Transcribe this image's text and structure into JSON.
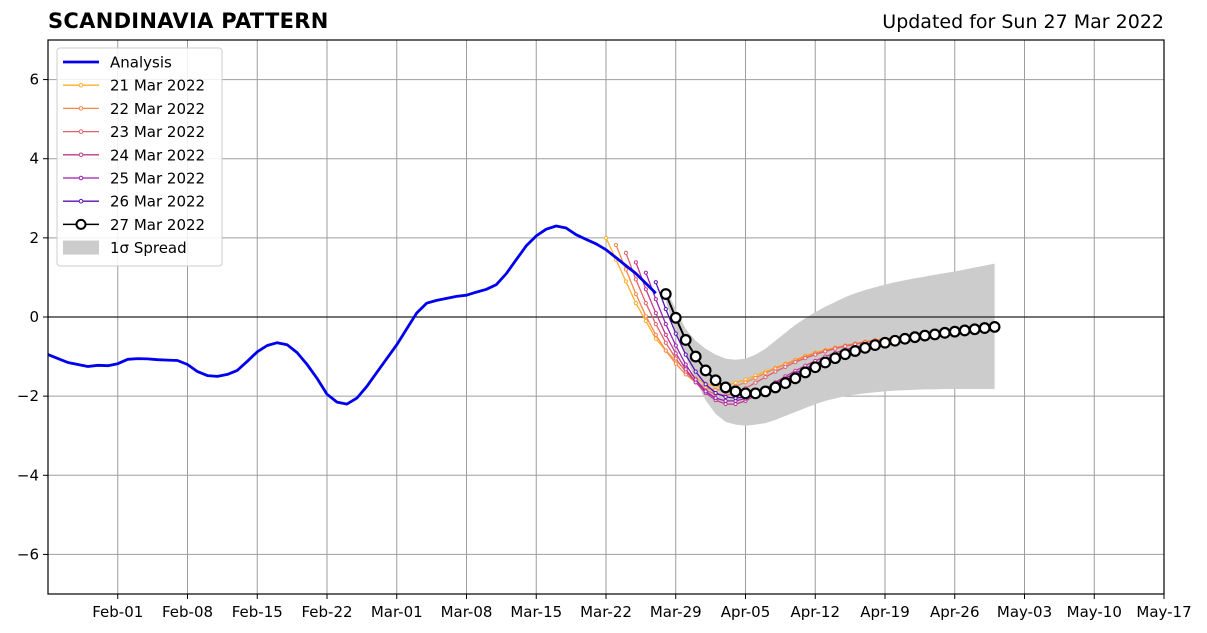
{
  "header": {
    "title": "SCANDINAVIA PATTERN",
    "updated": "Updated for Sun 27 Mar 2022"
  },
  "chart_data": {
    "type": "line",
    "title": "SCANDINAVIA PATTERN",
    "subtitle": "Updated for Sun 27 Mar 2022",
    "xlabel": "",
    "ylabel": "",
    "x_unit": "days since 2022-01-25",
    "xlim": [
      "2022-01-25",
      "2022-05-17"
    ],
    "ylim": [
      -7,
      7
    ],
    "x_ticks": [
      {
        "label": "Feb-01",
        "x": "2022-02-01"
      },
      {
        "label": "Feb-08",
        "x": "2022-02-08"
      },
      {
        "label": "Feb-15",
        "x": "2022-02-15"
      },
      {
        "label": "Feb-22",
        "x": "2022-02-22"
      },
      {
        "label": "Mar-01",
        "x": "2022-03-01"
      },
      {
        "label": "Mar-08",
        "x": "2022-03-08"
      },
      {
        "label": "Mar-15",
        "x": "2022-03-15"
      },
      {
        "label": "Mar-22",
        "x": "2022-03-22"
      },
      {
        "label": "Mar-29",
        "x": "2022-03-29"
      },
      {
        "label": "Apr-05",
        "x": "2022-04-05"
      },
      {
        "label": "Apr-12",
        "x": "2022-04-12"
      },
      {
        "label": "Apr-19",
        "x": "2022-04-19"
      },
      {
        "label": "Apr-26",
        "x": "2022-04-26"
      },
      {
        "label": "May-03",
        "x": "2022-05-03"
      },
      {
        "label": "May-10",
        "x": "2022-05-10"
      },
      {
        "label": "May-17",
        "x": "2022-05-17"
      }
    ],
    "y_ticks": [
      {
        "label": "6",
        "y": 6
      },
      {
        "label": "4",
        "y": 4
      },
      {
        "label": "2",
        "y": 2
      },
      {
        "label": "0",
        "y": 0
      },
      {
        "label": "−2",
        "y": -2
      },
      {
        "label": "−4",
        "y": -4
      },
      {
        "label": "−6",
        "y": -6
      }
    ],
    "grid": true,
    "zero_line": true,
    "legend_position": "top-left",
    "spread": {
      "name": "1σ Spread",
      "color": "#cccccc",
      "x": [
        "2022-03-28",
        "2022-03-29",
        "2022-03-30",
        "2022-03-31",
        "2022-04-01",
        "2022-04-02",
        "2022-04-03",
        "2022-04-04",
        "2022-04-05",
        "2022-04-06",
        "2022-04-07",
        "2022-04-08",
        "2022-04-09",
        "2022-04-10",
        "2022-04-11",
        "2022-04-12",
        "2022-04-13",
        "2022-04-14",
        "2022-04-15",
        "2022-04-16",
        "2022-04-17",
        "2022-04-18",
        "2022-04-19",
        "2022-04-20",
        "2022-04-21",
        "2022-04-22",
        "2022-04-23",
        "2022-04-24",
        "2022-04-25",
        "2022-04-26",
        "2022-04-27",
        "2022-04-28",
        "2022-04-29",
        "2022-04-30"
      ],
      "upper": [
        0.7,
        0.2,
        -0.3,
        -0.6,
        -0.8,
        -0.95,
        -1.05,
        -1.08,
        -1.05,
        -0.95,
        -0.8,
        -0.6,
        -0.4,
        -0.2,
        -0.03,
        0.12,
        0.26,
        0.38,
        0.5,
        0.6,
        0.68,
        0.75,
        0.82,
        0.88,
        0.93,
        0.98,
        1.02,
        1.07,
        1.11,
        1.15,
        1.2,
        1.25,
        1.3,
        1.35
      ],
      "lower": [
        0.4,
        -0.4,
        -1.0,
        -1.6,
        -2.1,
        -2.45,
        -2.65,
        -2.72,
        -2.75,
        -2.72,
        -2.68,
        -2.6,
        -2.5,
        -2.4,
        -2.3,
        -2.2,
        -2.12,
        -2.06,
        -2.0,
        -1.96,
        -1.93,
        -1.9,
        -1.88,
        -1.86,
        -1.85,
        -1.84,
        -1.83,
        -1.83,
        -1.82,
        -1.82,
        -1.82,
        -1.82,
        -1.82,
        -1.82
      ]
    },
    "analysis": {
      "name": "Analysis",
      "color": "#0000ee",
      "x": [
        "2022-01-25",
        "2022-01-26",
        "2022-01-27",
        "2022-01-28",
        "2022-01-29",
        "2022-01-30",
        "2022-01-31",
        "2022-02-01",
        "2022-02-02",
        "2022-02-03",
        "2022-02-04",
        "2022-02-05",
        "2022-02-06",
        "2022-02-07",
        "2022-02-08",
        "2022-02-09",
        "2022-02-10",
        "2022-02-11",
        "2022-02-12",
        "2022-02-13",
        "2022-02-14",
        "2022-02-15",
        "2022-02-16",
        "2022-02-17",
        "2022-02-18",
        "2022-02-19",
        "2022-02-20",
        "2022-02-21",
        "2022-02-22",
        "2022-02-23",
        "2022-02-24",
        "2022-02-25",
        "2022-02-26",
        "2022-02-27",
        "2022-02-28",
        "2022-03-01",
        "2022-03-02",
        "2022-03-03",
        "2022-03-04",
        "2022-03-05",
        "2022-03-06",
        "2022-03-07",
        "2022-03-08",
        "2022-03-09",
        "2022-03-10",
        "2022-03-11",
        "2022-03-12",
        "2022-03-13",
        "2022-03-14",
        "2022-03-15",
        "2022-03-16",
        "2022-03-17",
        "2022-03-18",
        "2022-03-19",
        "2022-03-20",
        "2022-03-21",
        "2022-03-22",
        "2022-03-23",
        "2022-03-24",
        "2022-03-25",
        "2022-03-26",
        "2022-03-27"
      ],
      "y": [
        -0.95,
        -1.05,
        -1.15,
        -1.2,
        -1.25,
        -1.22,
        -1.23,
        -1.18,
        -1.07,
        -1.05,
        -1.06,
        -1.08,
        -1.09,
        -1.1,
        -1.2,
        -1.38,
        -1.48,
        -1.5,
        -1.45,
        -1.35,
        -1.12,
        -0.88,
        -0.72,
        -0.65,
        -0.7,
        -0.9,
        -1.2,
        -1.55,
        -1.95,
        -2.15,
        -2.2,
        -2.05,
        -1.75,
        -1.4,
        -1.05,
        -0.7,
        -0.3,
        0.1,
        0.35,
        0.42,
        0.47,
        0.52,
        0.55,
        0.63,
        0.7,
        0.82,
        1.1,
        1.45,
        1.8,
        2.05,
        2.22,
        2.3,
        2.25,
        2.08,
        1.96,
        1.85,
        1.7,
        1.5,
        1.3,
        1.1,
        0.85,
        0.6
      ]
    },
    "series": [
      {
        "name": "21 Mar 2022",
        "color": "#ffae2a",
        "x": [
          "2022-03-22",
          "2022-03-23",
          "2022-03-24",
          "2022-03-25",
          "2022-03-26",
          "2022-03-27",
          "2022-03-28",
          "2022-03-29",
          "2022-03-30",
          "2022-03-31",
          "2022-04-01",
          "2022-04-02",
          "2022-04-03",
          "2022-04-04",
          "2022-04-05",
          "2022-04-06",
          "2022-04-07",
          "2022-04-08",
          "2022-04-09",
          "2022-04-10",
          "2022-04-11",
          "2022-04-12",
          "2022-04-13",
          "2022-04-14",
          "2022-04-15",
          "2022-04-16",
          "2022-04-17",
          "2022-04-18",
          "2022-04-19",
          "2022-04-20",
          "2022-04-21",
          "2022-04-22",
          "2022-04-23",
          "2022-04-24",
          "2022-04-25"
        ],
        "y": [
          2.0,
          1.45,
          0.9,
          0.35,
          -0.1,
          -0.55,
          -0.85,
          -1.1,
          -1.35,
          -1.55,
          -1.68,
          -1.75,
          -1.72,
          -1.66,
          -1.58,
          -1.48,
          -1.38,
          -1.28,
          -1.18,
          -1.08,
          -0.98,
          -0.9,
          -0.83,
          -0.77,
          -0.72,
          -0.67,
          -0.62,
          -0.58,
          -0.55,
          -0.52,
          -0.5,
          -0.48,
          -0.46,
          -0.45,
          -0.44
        ]
      },
      {
        "name": "22 Mar 2022",
        "color": "#f4874a",
        "x": [
          "2022-03-23",
          "2022-03-24",
          "2022-03-25",
          "2022-03-26",
          "2022-03-27",
          "2022-03-28",
          "2022-03-29",
          "2022-03-30",
          "2022-03-31",
          "2022-04-01",
          "2022-04-02",
          "2022-04-03",
          "2022-04-04",
          "2022-04-05",
          "2022-04-06",
          "2022-04-07",
          "2022-04-08",
          "2022-04-09",
          "2022-04-10",
          "2022-04-11",
          "2022-04-12",
          "2022-04-13",
          "2022-04-14",
          "2022-04-15",
          "2022-04-16",
          "2022-04-17",
          "2022-04-18",
          "2022-04-19",
          "2022-04-20",
          "2022-04-21",
          "2022-04-22",
          "2022-04-23",
          "2022-04-24",
          "2022-04-25",
          "2022-04-26"
        ],
        "y": [
          1.82,
          1.2,
          0.58,
          0.02,
          -0.45,
          -0.85,
          -1.18,
          -1.45,
          -1.65,
          -1.78,
          -1.85,
          -1.82,
          -1.75,
          -1.65,
          -1.54,
          -1.42,
          -1.3,
          -1.2,
          -1.1,
          -1.0,
          -0.92,
          -0.85,
          -0.78,
          -0.72,
          -0.67,
          -0.63,
          -0.59,
          -0.56,
          -0.53,
          -0.5,
          -0.48,
          -0.46,
          -0.44,
          -0.43,
          -0.42
        ]
      },
      {
        "name": "23 Mar 2022",
        "color": "#e0606e",
        "x": [
          "2022-03-24",
          "2022-03-25",
          "2022-03-26",
          "2022-03-27",
          "2022-03-28",
          "2022-03-29",
          "2022-03-30",
          "2022-03-31",
          "2022-04-01",
          "2022-04-02",
          "2022-04-03",
          "2022-04-04",
          "2022-04-05",
          "2022-04-06",
          "2022-04-07",
          "2022-04-08",
          "2022-04-09",
          "2022-04-10",
          "2022-04-11",
          "2022-04-12",
          "2022-04-13",
          "2022-04-14",
          "2022-04-15",
          "2022-04-16",
          "2022-04-17",
          "2022-04-18",
          "2022-04-19",
          "2022-04-20",
          "2022-04-21",
          "2022-04-22",
          "2022-04-23",
          "2022-04-24",
          "2022-04-25",
          "2022-04-26",
          "2022-04-27"
        ],
        "y": [
          1.62,
          0.95,
          0.35,
          -0.18,
          -0.65,
          -1.05,
          -1.38,
          -1.65,
          -1.85,
          -1.95,
          -1.98,
          -1.92,
          -1.8,
          -1.66,
          -1.52,
          -1.38,
          -1.26,
          -1.14,
          -1.04,
          -0.95,
          -0.87,
          -0.8,
          -0.74,
          -0.69,
          -0.64,
          -0.6,
          -0.56,
          -0.53,
          -0.5,
          -0.47,
          -0.45,
          -0.43,
          -0.41,
          -0.4,
          -0.39
        ]
      },
      {
        "name": "24 Mar 2022",
        "color": "#c03a8e",
        "x": [
          "2022-03-25",
          "2022-03-26",
          "2022-03-27",
          "2022-03-28",
          "2022-03-29",
          "2022-03-30",
          "2022-03-31",
          "2022-04-01",
          "2022-04-02",
          "2022-04-03",
          "2022-04-04",
          "2022-04-05",
          "2022-04-06",
          "2022-04-07",
          "2022-04-08",
          "2022-04-09",
          "2022-04-10",
          "2022-04-11",
          "2022-04-12",
          "2022-04-13",
          "2022-04-14",
          "2022-04-15",
          "2022-04-16",
          "2022-04-17",
          "2022-04-18",
          "2022-04-19",
          "2022-04-20",
          "2022-04-21",
          "2022-04-22",
          "2022-04-23",
          "2022-04-24",
          "2022-04-25",
          "2022-04-26",
          "2022-04-27",
          "2022-04-28"
        ],
        "y": [
          1.38,
          0.7,
          0.1,
          -0.45,
          -0.92,
          -1.32,
          -1.65,
          -1.92,
          -2.1,
          -2.2,
          -2.2,
          -2.12,
          -1.98,
          -1.82,
          -1.65,
          -1.5,
          -1.36,
          -1.23,
          -1.11,
          -1.0,
          -0.91,
          -0.83,
          -0.76,
          -0.7,
          -0.65,
          -0.6,
          -0.56,
          -0.52,
          -0.49,
          -0.46,
          -0.43,
          -0.41,
          -0.39,
          -0.37,
          -0.35
        ]
      },
      {
        "name": "25 Mar 2022",
        "color": "#9a1fb0",
        "x": [
          "2022-03-26",
          "2022-03-27",
          "2022-03-28",
          "2022-03-29",
          "2022-03-30",
          "2022-03-31",
          "2022-04-01",
          "2022-04-02",
          "2022-04-03",
          "2022-04-04",
          "2022-04-05",
          "2022-04-06",
          "2022-04-07",
          "2022-04-08",
          "2022-04-09",
          "2022-04-10",
          "2022-04-11",
          "2022-04-12",
          "2022-04-13",
          "2022-04-14",
          "2022-04-15",
          "2022-04-16",
          "2022-04-17",
          "2022-04-18",
          "2022-04-19",
          "2022-04-20",
          "2022-04-21",
          "2022-04-22",
          "2022-04-23",
          "2022-04-24",
          "2022-04-25",
          "2022-04-26",
          "2022-04-27",
          "2022-04-28",
          "2022-04-29"
        ],
        "y": [
          1.12,
          0.45,
          -0.18,
          -0.72,
          -1.2,
          -1.58,
          -1.88,
          -2.05,
          -2.12,
          -2.12,
          -2.06,
          -1.95,
          -1.82,
          -1.68,
          -1.55,
          -1.42,
          -1.3,
          -1.18,
          -1.07,
          -0.97,
          -0.88,
          -0.8,
          -0.73,
          -0.67,
          -0.62,
          -0.57,
          -0.53,
          -0.49,
          -0.46,
          -0.43,
          -0.41,
          -0.38,
          -0.36,
          -0.34,
          -0.32
        ]
      },
      {
        "name": "26 Mar 2022",
        "color": "#5a0fb0",
        "x": [
          "2022-03-27",
          "2022-03-28",
          "2022-03-29",
          "2022-03-30",
          "2022-03-31",
          "2022-04-01",
          "2022-04-02",
          "2022-04-03",
          "2022-04-04",
          "2022-04-05",
          "2022-04-06",
          "2022-04-07",
          "2022-04-08",
          "2022-04-09",
          "2022-04-10",
          "2022-04-11",
          "2022-04-12",
          "2022-04-13",
          "2022-04-14",
          "2022-04-15",
          "2022-04-16",
          "2022-04-17",
          "2022-04-18",
          "2022-04-19",
          "2022-04-20",
          "2022-04-21",
          "2022-04-22",
          "2022-04-23",
          "2022-04-24",
          "2022-04-25",
          "2022-04-26",
          "2022-04-27",
          "2022-04-28",
          "2022-04-29",
          "2022-04-30"
        ],
        "y": [
          0.88,
          0.2,
          -0.42,
          -0.95,
          -1.38,
          -1.7,
          -1.92,
          -2.02,
          -2.05,
          -2.02,
          -1.95,
          -1.85,
          -1.73,
          -1.6,
          -1.47,
          -1.34,
          -1.22,
          -1.11,
          -1.01,
          -0.92,
          -0.84,
          -0.77,
          -0.7,
          -0.64,
          -0.59,
          -0.55,
          -0.51,
          -0.47,
          -0.44,
          -0.41,
          -0.38,
          -0.36,
          -0.34,
          -0.32,
          -0.3
        ]
      },
      {
        "name": "27 Mar 2022",
        "color": "#000000",
        "x": [
          "2022-03-28",
          "2022-03-29",
          "2022-03-30",
          "2022-03-31",
          "2022-04-01",
          "2022-04-02",
          "2022-04-03",
          "2022-04-04",
          "2022-04-05",
          "2022-04-06",
          "2022-04-07",
          "2022-04-08",
          "2022-04-09",
          "2022-04-10",
          "2022-04-11",
          "2022-04-12",
          "2022-04-13",
          "2022-04-14",
          "2022-04-15",
          "2022-04-16",
          "2022-04-17",
          "2022-04-18",
          "2022-04-19",
          "2022-04-20",
          "2022-04-21",
          "2022-04-22",
          "2022-04-23",
          "2022-04-24",
          "2022-04-25",
          "2022-04-26",
          "2022-04-27",
          "2022-04-28",
          "2022-04-29",
          "2022-04-30"
        ],
        "y": [
          0.58,
          -0.02,
          -0.58,
          -1.0,
          -1.35,
          -1.6,
          -1.78,
          -1.88,
          -1.93,
          -1.93,
          -1.88,
          -1.78,
          -1.67,
          -1.55,
          -1.4,
          -1.27,
          -1.15,
          -1.04,
          -0.94,
          -0.86,
          -0.78,
          -0.71,
          -0.65,
          -0.6,
          -0.55,
          -0.51,
          -0.47,
          -0.44,
          -0.4,
          -0.37,
          -0.34,
          -0.31,
          -0.28,
          -0.25
        ]
      }
    ]
  }
}
